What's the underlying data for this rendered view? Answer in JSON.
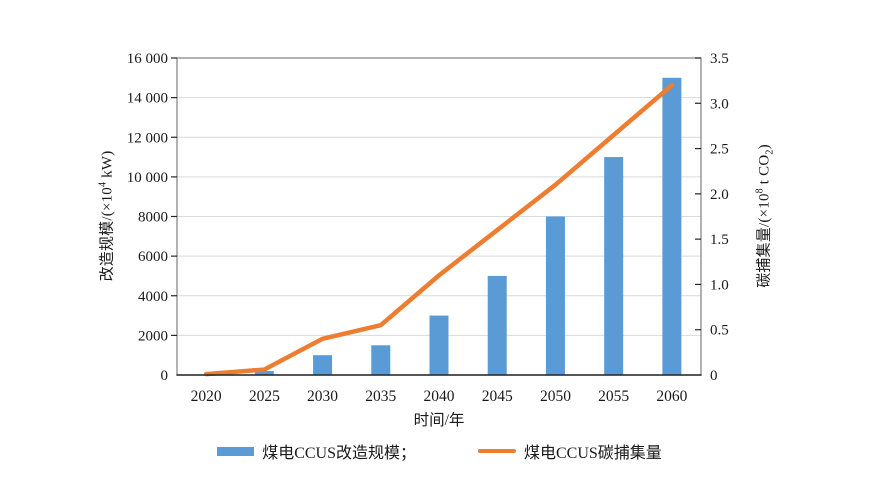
{
  "colors": {
    "bar": "#5B9BD5",
    "line": "#ED7D31",
    "grid": "#D9D9D9",
    "spine": "#7F7F7F",
    "axis": "#262626",
    "text": "#1A1A1A"
  },
  "axes": {
    "left_title": {
      "prefix": "改造规模/(×10",
      "sup": "4",
      "suffix": " kW)"
    },
    "right_title": {
      "prefix": "碳捕集量/(×10",
      "sup": "8",
      "mid": " t CO",
      "sub": "2",
      "suffix": ")"
    }
  },
  "legend": {
    "bar_label": "煤电CCUS改造规模；",
    "line_label": "煤电CCUS碳捕集量"
  },
  "chart_data": {
    "type": "bar",
    "title": "",
    "categories": [
      "2020",
      "2025",
      "2030",
      "2035",
      "2040",
      "2045",
      "2050",
      "2055",
      "2060"
    ],
    "series": [
      {
        "name": "煤电CCUS改造规模",
        "type": "bar",
        "y_axis": "left",
        "color": "#5B9BD5",
        "values": [
          0,
          200,
          1000,
          1500,
          3000,
          5000,
          8000,
          11000,
          15000
        ]
      },
      {
        "name": "煤电CCUS碳捕集量",
        "type": "line",
        "y_axis": "right",
        "color": "#ED7D31",
        "values": [
          0.01,
          0.06,
          0.4,
          0.55,
          1.1,
          1.6,
          2.1,
          2.65,
          3.2
        ]
      }
    ],
    "xlabel": "时间/年",
    "ylabel_left": "改造规模/(×10⁴ kW)",
    "ylabel_right": "碳捕集量/(×10⁸ t CO₂)",
    "ylim_left": [
      0,
      16000
    ],
    "ylim_right": [
      0,
      3.5
    ],
    "yticks_left": [
      "0",
      "2000",
      "4000",
      "6000",
      "8000",
      "10 000",
      "12 000",
      "14 000",
      "16 000"
    ],
    "yticks_right": [
      "0",
      "0.5",
      "1.0",
      "1.5",
      "2.0",
      "2.5",
      "3.0",
      "3.5"
    ],
    "grid": "horizontal",
    "legend_position": "bottom"
  }
}
